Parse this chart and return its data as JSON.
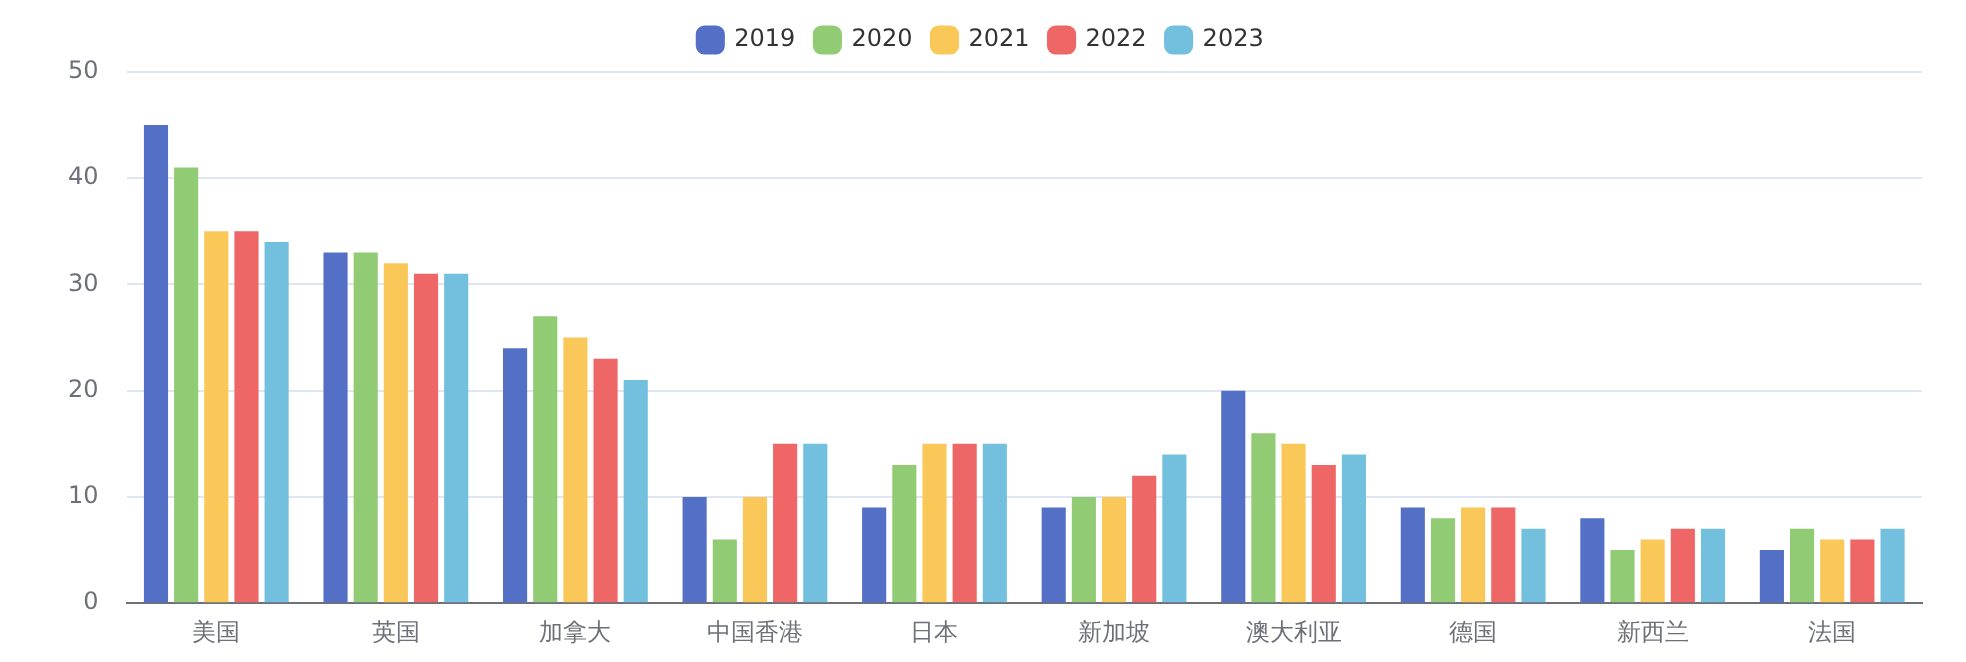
{
  "chart_data": {
    "type": "bar",
    "categories": [
      "美国",
      "英国",
      "加拿大",
      "中国香港",
      "日本",
      "新加坡",
      "澳大利亚",
      "德国",
      "新西兰",
      "法国"
    ],
    "series": [
      {
        "name": "2019",
        "color": "#5470c6",
        "values": [
          45,
          33,
          24,
          10,
          9,
          9,
          20,
          9,
          8,
          5
        ]
      },
      {
        "name": "2020",
        "color": "#91cc75",
        "values": [
          41,
          33,
          27,
          6,
          13,
          10,
          16,
          8,
          5,
          7
        ]
      },
      {
        "name": "2021",
        "color": "#fac858",
        "values": [
          35,
          32,
          25,
          10,
          15,
          10,
          15,
          9,
          6,
          6
        ]
      },
      {
        "name": "2022",
        "color": "#ee6666",
        "values": [
          35,
          31,
          23,
          15,
          15,
          12,
          13,
          9,
          7,
          6
        ]
      },
      {
        "name": "2023",
        "color": "#73c0de",
        "values": [
          34,
          31,
          21,
          15,
          15,
          14,
          14,
          7,
          7,
          7
        ]
      }
    ],
    "ylim": [
      0,
      50
    ],
    "yticks": [
      0,
      10,
      20,
      30,
      40,
      50
    ],
    "grid": "y",
    "legend": "top"
  }
}
